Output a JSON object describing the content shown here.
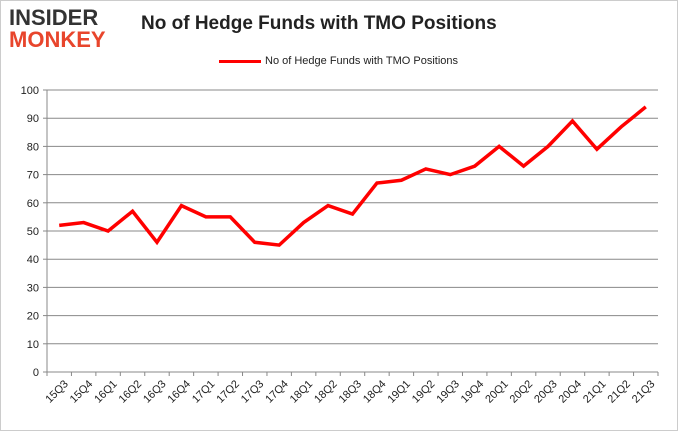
{
  "logo": {
    "line1": "INSIDER",
    "line2": "MONKEY"
  },
  "chart_data": {
    "type": "line",
    "title": "No of Hedge Funds with TMO Positions",
    "categories": [
      "15Q3",
      "15Q4",
      "16Q1",
      "16Q2",
      "16Q3",
      "16Q4",
      "17Q1",
      "17Q2",
      "17Q3",
      "17Q4",
      "18Q1",
      "18Q2",
      "18Q3",
      "18Q4",
      "19Q1",
      "19Q2",
      "19Q3",
      "19Q4",
      "20Q1",
      "20Q2",
      "20Q3",
      "20Q4",
      "21Q1",
      "21Q2",
      "21Q3"
    ],
    "series": [
      {
        "name": "No of Hedge Funds with TMO Positions",
        "color": "#ff0000",
        "values": [
          52,
          53,
          50,
          57,
          46,
          59,
          55,
          55,
          46,
          45,
          53,
          59,
          56,
          67,
          68,
          72,
          70,
          73,
          80,
          73,
          80,
          89,
          79,
          87,
          94
        ]
      }
    ],
    "ylim": [
      0,
      100
    ],
    "yticks": [
      0,
      10,
      20,
      30,
      40,
      50,
      60,
      70,
      80,
      90,
      100
    ],
    "grid": true,
    "legend": "top-center",
    "xlabel": "",
    "ylabel": ""
  }
}
